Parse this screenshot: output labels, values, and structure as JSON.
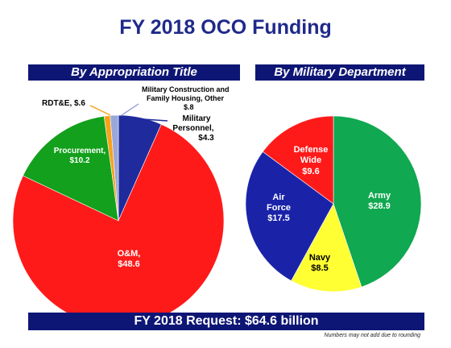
{
  "title": "FY 2018 OCO Funding",
  "footer": "FY 2018 Request:  $64.6 billion",
  "footnote": "Numbers may not add due to rounding",
  "chart_data": [
    {
      "type": "pie",
      "title": "By Appropriation Title",
      "slices": [
        {
          "label": "Military Personnel, $4.3",
          "value": 4.3,
          "color": "#1f2a9c"
        },
        {
          "label": "O&M, $48.6",
          "value": 48.6,
          "color": "#ff1a1a"
        },
        {
          "label": "Procurement, $10.2",
          "value": 10.2,
          "color": "#13a01c"
        },
        {
          "label": "RDT&E, $.6",
          "value": 0.6,
          "color": "#f7a21b"
        },
        {
          "label": "Military Construction and Family Housing, Other $.8",
          "value": 0.8,
          "color": "#9aa6d8"
        }
      ]
    },
    {
      "type": "pie",
      "title": "By Military Department",
      "slices": [
        {
          "label": "Army $28.9",
          "value": 28.9,
          "color": "#10a850"
        },
        {
          "label": "Navy $8.5",
          "value": 8.5,
          "color": "#ffff33"
        },
        {
          "label": "Air Force $17.5",
          "value": 17.5,
          "color": "#1a23a8"
        },
        {
          "label": "Defense Wide $9.6",
          "value": 9.6,
          "color": "#ff1a1a"
        }
      ]
    }
  ]
}
